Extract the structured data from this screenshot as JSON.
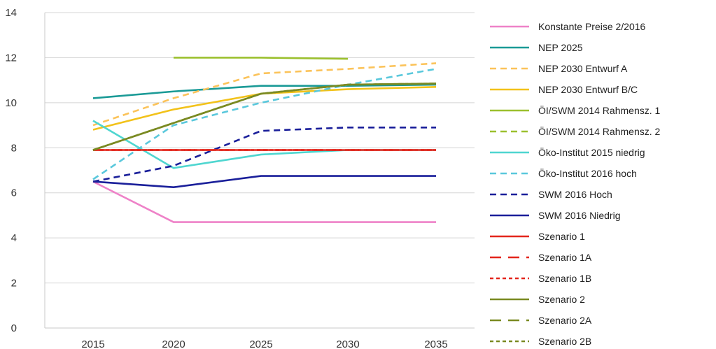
{
  "chart_data": {
    "type": "line",
    "x": [
      2015,
      2020,
      2025,
      2030,
      2035
    ],
    "ylim": [
      0,
      14
    ],
    "y_ticks": [
      0,
      2,
      4,
      6,
      8,
      10,
      12,
      14
    ],
    "x_ticks": [
      "2015",
      "2020",
      "2025",
      "2030",
      "2035"
    ],
    "grid": "horizontal",
    "legend": "right",
    "series": [
      {
        "name": "Konstante Preise 2/2016",
        "color": "#ee82c8",
        "dash": "solid",
        "values": [
          6.5,
          4.7,
          4.7,
          4.7,
          4.7
        ]
      },
      {
        "name": "NEP 2025",
        "color": "#1a9a96",
        "dash": "solid",
        "values": [
          10.2,
          10.5,
          10.75,
          10.75,
          10.8
        ]
      },
      {
        "name": "NEP 2030 Entwurf A",
        "color": "#fbc35a",
        "dash": "dashed",
        "values": [
          9.0,
          10.2,
          11.3,
          11.5,
          11.75
        ]
      },
      {
        "name": "NEP 2030 Entwurf B/C",
        "color": "#f2c21a",
        "dash": "solid",
        "values": [
          8.8,
          9.7,
          10.4,
          10.6,
          10.7
        ]
      },
      {
        "name": "ÖI/SWM 2014 Rahmensz. 1",
        "color": "#9bc02e",
        "dash": "solid",
        "values": [
          null,
          12.0,
          12.0,
          11.95,
          null
        ]
      },
      {
        "name": "ÖI/SWM 2014 Rahmensz. 2",
        "color": "#9bc02e",
        "dash": "dashed",
        "values": [
          null,
          null,
          null,
          null,
          null
        ]
      },
      {
        "name": "Öko-Institut 2015 niedrig",
        "color": "#4fd6d0",
        "dash": "solid",
        "values": [
          9.2,
          7.1,
          7.7,
          7.9,
          7.9
        ]
      },
      {
        "name": "Öko-Institut 2016 hoch",
        "color": "#5ac8dc",
        "dash": "dashed",
        "values": [
          6.6,
          9.0,
          10.0,
          10.8,
          11.5
        ]
      },
      {
        "name": "SWM 2016 Hoch",
        "color": "#1a1f9a",
        "dash": "dashed",
        "values": [
          6.5,
          7.2,
          8.75,
          8.9,
          8.9
        ]
      },
      {
        "name": "SWM 2016 Niedrig",
        "color": "#1a1f9a",
        "dash": "solid",
        "values": [
          6.5,
          6.25,
          6.75,
          6.75,
          6.75
        ]
      },
      {
        "name": "Szenario 1",
        "color": "#e3261c",
        "dash": "solid",
        "values": [
          7.9,
          7.9,
          7.9,
          7.9,
          7.9
        ]
      },
      {
        "name": "Szenario 1A",
        "color": "#e3261c",
        "dash": "longdash",
        "values": [
          7.9,
          7.9,
          7.9,
          7.9,
          7.9
        ]
      },
      {
        "name": "Szenario 1B",
        "color": "#e3261c",
        "dash": "dotted",
        "values": [
          7.9,
          7.9,
          7.9,
          7.9,
          7.9
        ]
      },
      {
        "name": "Szenario 2",
        "color": "#7a8a22",
        "dash": "solid",
        "values": [
          7.9,
          9.1,
          10.4,
          10.8,
          10.85
        ]
      },
      {
        "name": "Szenario 2A",
        "color": "#7a8a22",
        "dash": "longdash",
        "values": [
          7.9,
          9.1,
          10.4,
          10.8,
          10.85
        ]
      },
      {
        "name": "Szenario 2B",
        "color": "#7a8a22",
        "dash": "dotted",
        "values": [
          7.9,
          9.1,
          10.4,
          10.8,
          10.85
        ]
      }
    ]
  }
}
